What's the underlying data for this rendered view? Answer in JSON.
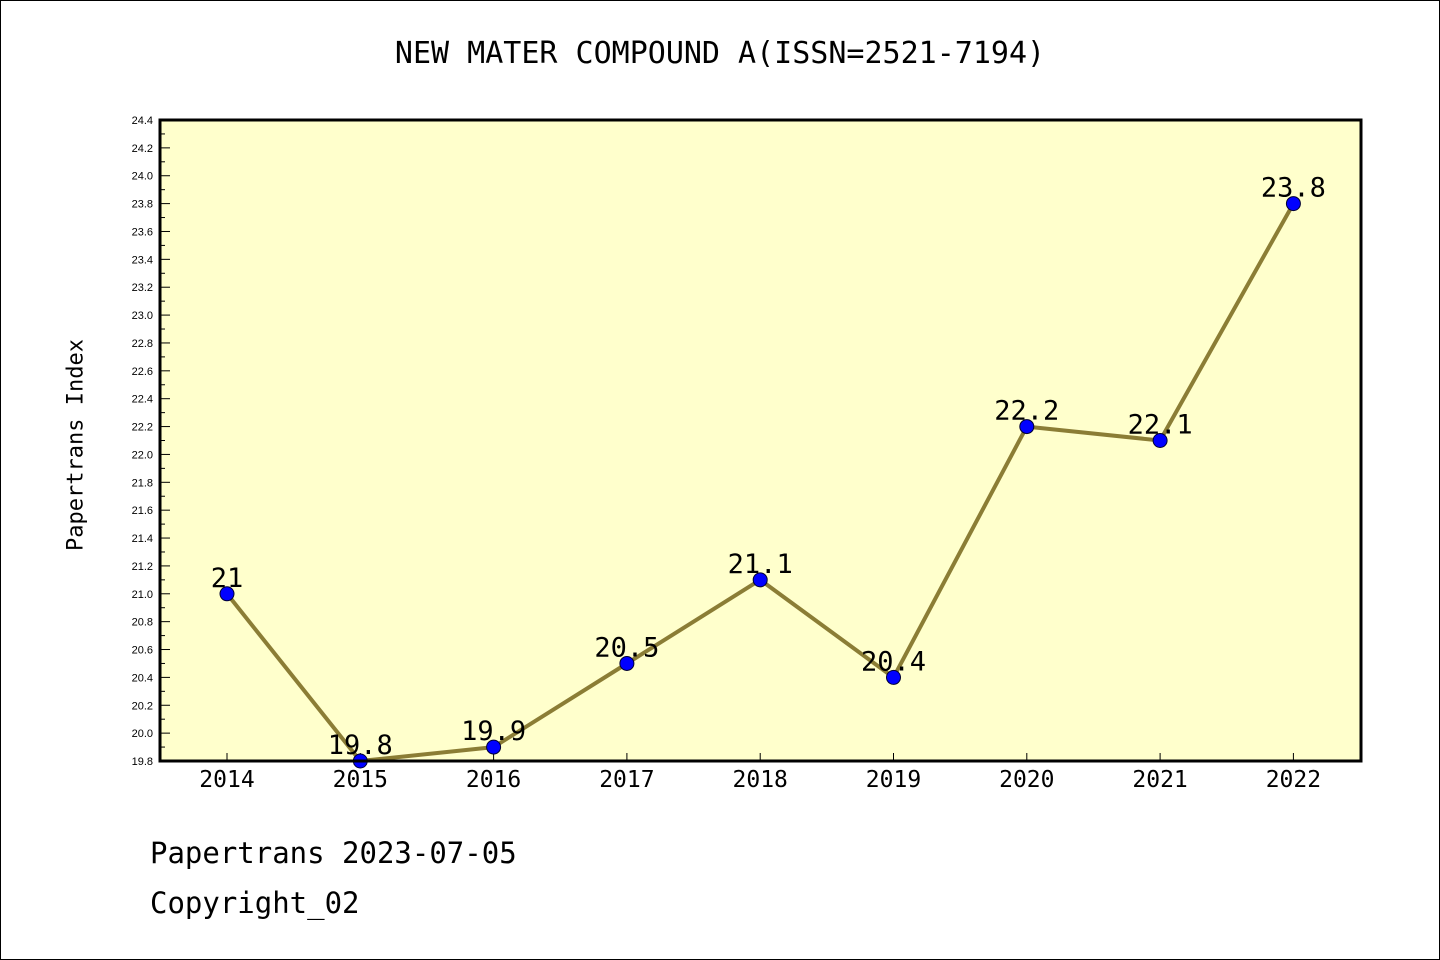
{
  "chart_data": {
    "type": "line",
    "title": "NEW MATER COMPOUND A(ISSN=2521-7194)",
    "xlabel": "",
    "ylabel": "Papertrans Index",
    "categories": [
      "2014",
      "2015",
      "2016",
      "2017",
      "2018",
      "2019",
      "2020",
      "2021",
      "2022"
    ],
    "values": [
      21.0,
      19.8,
      19.9,
      20.5,
      21.1,
      20.4,
      22.2,
      22.1,
      23.8
    ],
    "data_labels": [
      "21",
      "19.8",
      "19.9",
      "20.5",
      "21.1",
      "20.4",
      "22.2",
      "22.1",
      "23.8"
    ],
    "ylim": [
      19.8,
      24.4
    ],
    "ytick_step": 0.2,
    "yticks": [
      "19.8",
      "20.0",
      "20.2",
      "20.4",
      "20.6",
      "20.8",
      "21.0",
      "21.2",
      "21.4",
      "21.6",
      "21.8",
      "22.0",
      "22.2",
      "22.4",
      "22.6",
      "22.8",
      "23.0",
      "23.2",
      "23.4",
      "23.6",
      "23.8",
      "24.0",
      "24.2",
      "24.4"
    ],
    "grid": false,
    "legend": "none",
    "colors": {
      "plot_background": "#ffffcc",
      "line": "#8b7d35",
      "marker": "#0000ff"
    }
  },
  "footer": {
    "line1": "Papertrans 2023-07-05",
    "line2": "Copyright_02"
  }
}
